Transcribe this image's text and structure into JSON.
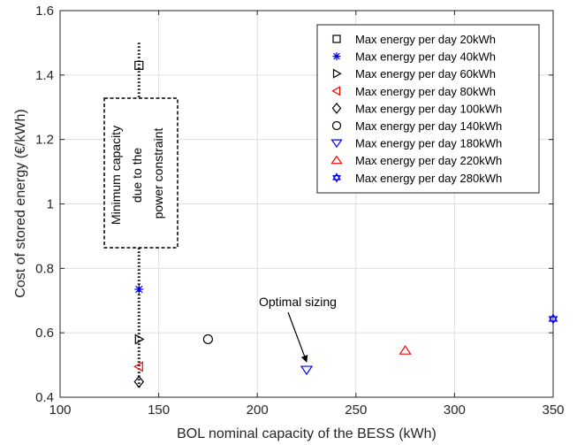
{
  "chart_data": {
    "type": "scatter",
    "title": "",
    "xlabel": "BOL nominal capacity of the BESS (kWh)",
    "ylabel": "Cost of stored energy (€/kWh)",
    "xlim": [
      100,
      350
    ],
    "ylim": [
      0.4,
      1.6
    ],
    "x_ticks": [
      100,
      150,
      200,
      250,
      300,
      350
    ],
    "y_ticks": [
      0.4,
      0.6,
      0.8,
      1.0,
      1.2,
      1.4,
      1.6
    ],
    "x_tick_labels": [
      "100",
      "150",
      "200",
      "250",
      "300",
      "350"
    ],
    "y_tick_labels": [
      "0.4",
      "0.6",
      "0.8",
      "1",
      "1.2",
      "1.4",
      "1.6"
    ],
    "grid": true,
    "legend_position": "top-right",
    "series": [
      {
        "name": "Max energy per day 20kWh",
        "marker": "square",
        "color": "#000000",
        "x": [
          140
        ],
        "y": [
          1.43
        ]
      },
      {
        "name": "Max energy per day 40kWh",
        "marker": "asterisk",
        "color": "#0000ff",
        "x": [
          140
        ],
        "y": [
          0.735
        ]
      },
      {
        "name": "Max energy per day 60kWh",
        "marker": "triangle-right",
        "color": "#000000",
        "x": [
          140
        ],
        "y": [
          0.58
        ]
      },
      {
        "name": "Max energy per day 80kWh",
        "marker": "triangle-left",
        "color": "#ff0000",
        "x": [
          140
        ],
        "y": [
          0.495
        ]
      },
      {
        "name": "Max energy per day 100kWh",
        "marker": "diamond",
        "color": "#000000",
        "x": [
          140
        ],
        "y": [
          0.448
        ]
      },
      {
        "name": "Max energy per day 140kWh",
        "marker": "circle",
        "color": "#000000",
        "x": [
          175
        ],
        "y": [
          0.58
        ]
      },
      {
        "name": "Max energy per day 180kWh",
        "marker": "triangle-down",
        "color": "#0000ff",
        "x": [
          225
        ],
        "y": [
          0.485
        ]
      },
      {
        "name": "Max energy per day 220kWh",
        "marker": "triangle-up",
        "color": "#ff0000",
        "x": [
          275
        ],
        "y": [
          0.545
        ]
      },
      {
        "name": "Max energy per day 280kWh",
        "marker": "hexagram",
        "color": "#0000ff",
        "x": [
          350
        ],
        "y": [
          0.643
        ]
      }
    ],
    "annotations": [
      {
        "text": "Minimum capacity due to the power constraint",
        "vertical_line_x": 140,
        "vertical_line_y": [
          0.43,
          1.5
        ]
      },
      {
        "text": "Optimal sizing",
        "arrow_to": [
          225,
          0.51
        ]
      }
    ]
  }
}
